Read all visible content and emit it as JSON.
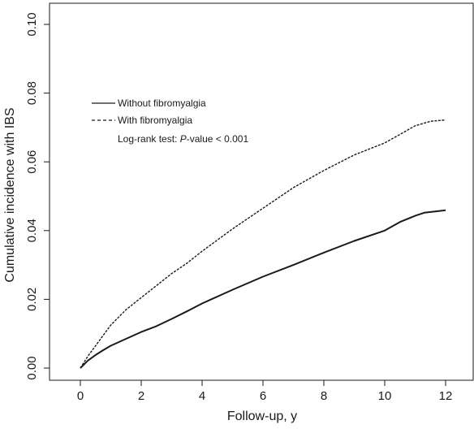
{
  "chart_data": {
    "type": "line",
    "title": "",
    "xlabel": "Follow-up, y",
    "ylabel": "Cumulative incidence with IBS",
    "xlim": [
      0,
      12
    ],
    "ylim": [
      0,
      0.1
    ],
    "xticks": [
      0,
      2,
      4,
      6,
      8,
      10,
      12
    ],
    "xtick_labels": [
      "0",
      "2",
      "4",
      "6",
      "8",
      "10",
      "12"
    ],
    "yticks": [
      0,
      0.02,
      0.04,
      0.06,
      0.08,
      0.1
    ],
    "ytick_labels": [
      "0.00",
      "0.02",
      "0.04",
      "0.06",
      "0.08",
      "0.10"
    ],
    "grid": false,
    "legend_position": "top-left",
    "annotation": {
      "prefix": "Log-rank test: ",
      "italic": "P",
      "suffix": "-value < 0.001"
    },
    "series": [
      {
        "name": "Without fibromyalgia",
        "line_style": "solid",
        "x": [
          0,
          0.25,
          0.5,
          0.75,
          1,
          1.5,
          2,
          2.5,
          3,
          3.5,
          4,
          5,
          6,
          7,
          8,
          9,
          10,
          10.5,
          11,
          11.3,
          11.6,
          12
        ],
        "y": [
          0,
          0.0022,
          0.0038,
          0.0052,
          0.0065,
          0.0085,
          0.0105,
          0.0122,
          0.0143,
          0.0165,
          0.0188,
          0.0228,
          0.0266,
          0.03,
          0.0336,
          0.037,
          0.04,
          0.0425,
          0.0443,
          0.0452,
          0.0455,
          0.0459
        ]
      },
      {
        "name": "With fibromyalgia",
        "line_style": "dashed",
        "x": [
          0,
          0.25,
          0.5,
          0.75,
          1,
          1.5,
          2,
          2.5,
          3,
          3.5,
          4,
          5,
          6,
          7,
          8,
          9,
          10,
          10.5,
          11,
          11.5,
          12
        ],
        "y": [
          0,
          0.0035,
          0.0065,
          0.0095,
          0.0125,
          0.017,
          0.0205,
          0.024,
          0.0275,
          0.0305,
          0.034,
          0.0405,
          0.0465,
          0.0525,
          0.0575,
          0.062,
          0.0655,
          0.068,
          0.0705,
          0.0718,
          0.0722
        ]
      }
    ]
  }
}
